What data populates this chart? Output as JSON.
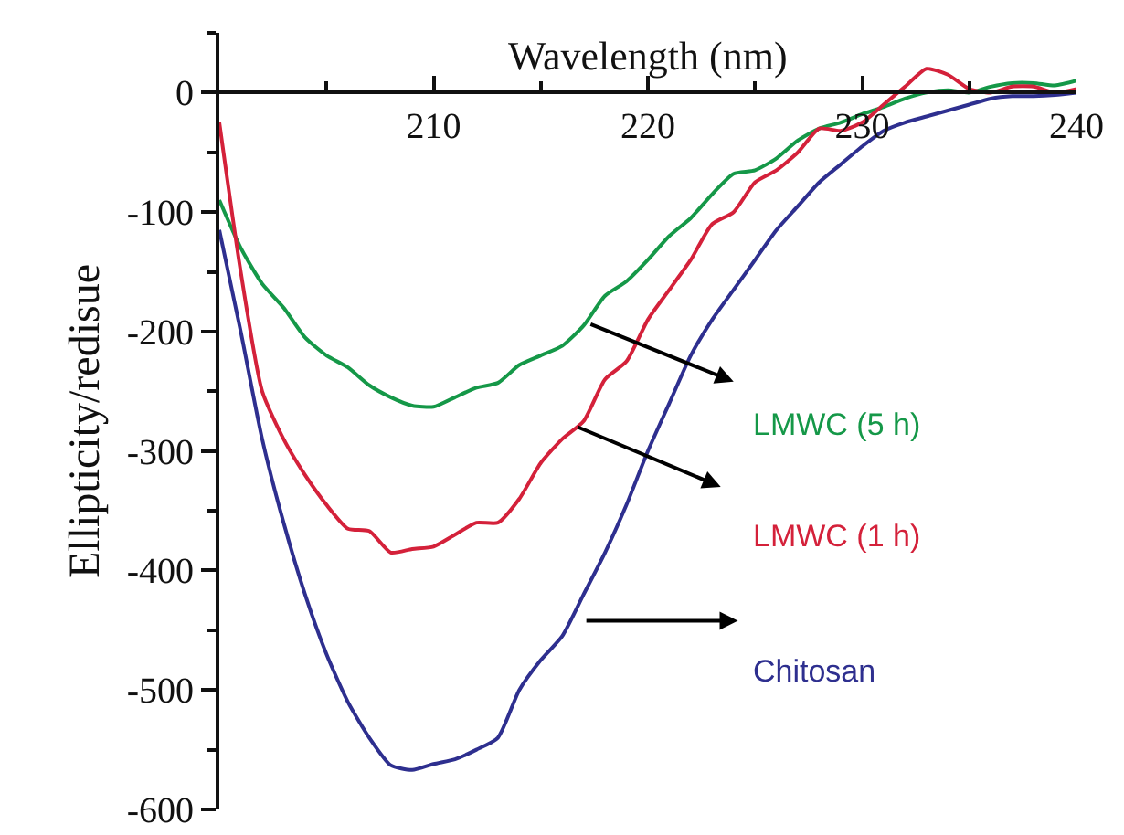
{
  "chart_data": {
    "type": "line",
    "xlabel": "Wavelength (nm)",
    "ylabel": "Ellipticity/redisue",
    "x": [
      200,
      201,
      202,
      203,
      204,
      205,
      206,
      207,
      208,
      209,
      210,
      211,
      212,
      213,
      214,
      215,
      216,
      217,
      218,
      219,
      220,
      221,
      222,
      223,
      224,
      225,
      226,
      227,
      228,
      229,
      230,
      231,
      232,
      233,
      234,
      235,
      236,
      237,
      238,
      239,
      240
    ],
    "xlim": [
      200,
      240
    ],
    "xticks": [
      210,
      220,
      230,
      240
    ],
    "ylim": [
      -600,
      50
    ],
    "yticks": [
      -600,
      -500,
      -400,
      -300,
      -200,
      -100,
      0
    ],
    "grid": false,
    "legend": false,
    "line_style": "solid",
    "marker": "none",
    "series": [
      {
        "name": "LMWC (5 h)",
        "color": "#159848",
        "values": [
          -90,
          -130,
          -160,
          -180,
          -205,
          -220,
          -230,
          -245,
          -255,
          -262,
          -263,
          -255,
          -247,
          -243,
          -228,
          -220,
          -212,
          -195,
          -170,
          -158,
          -140,
          -120,
          -105,
          -85,
          -68,
          -65,
          -55,
          -40,
          -30,
          -25,
          -18,
          -12,
          -5,
          0,
          2,
          0,
          5,
          8,
          8,
          6,
          10
        ]
      },
      {
        "name": "LMWC (1 h)",
        "color": "#d4213a",
        "values": [
          -25,
          -150,
          -250,
          -290,
          -320,
          -345,
          -365,
          -367,
          -385,
          -382,
          -380,
          -370,
          -360,
          -360,
          -340,
          -310,
          -290,
          -275,
          -240,
          -225,
          -190,
          -165,
          -140,
          -110,
          -100,
          -75,
          -65,
          -50,
          -30,
          -32,
          -25,
          -10,
          5,
          20,
          15,
          3,
          0,
          5,
          5,
          0,
          3
        ]
      },
      {
        "name": "Chitosan",
        "color": "#2e2f8f",
        "values": [
          -115,
          -200,
          -290,
          -360,
          -420,
          -470,
          -510,
          -540,
          -563,
          -567,
          -562,
          -558,
          -550,
          -540,
          -500,
          -475,
          -455,
          -420,
          -385,
          -345,
          -300,
          -260,
          -220,
          -190,
          -165,
          -140,
          -115,
          -95,
          -75,
          -60,
          -45,
          -32,
          -25,
          -20,
          -15,
          -10,
          -5,
          -3,
          -3,
          -2,
          0
        ]
      }
    ]
  }
}
